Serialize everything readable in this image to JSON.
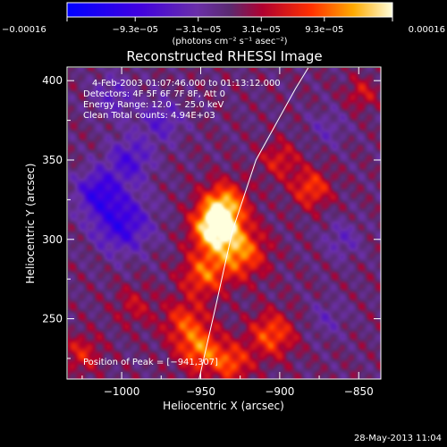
{
  "chart_data": {
    "type": "heatmap",
    "title": "Reconstructed RHESSI Image",
    "xlabel": "Heliocentric X (arcsec)",
    "ylabel": "Heliocentric Y (arcsec)",
    "xlim": [
      -1034,
      -836
    ],
    "ylim": [
      212,
      408
    ],
    "xticks": [
      -1000,
      -950,
      -900,
      -850
    ],
    "xtick_labels": [
      "−1000",
      "−950",
      "−900",
      "−850"
    ],
    "yticks": [
      250,
      300,
      350,
      400
    ],
    "ytick_labels": [
      "250",
      "300",
      "350",
      "400"
    ],
    "colorbar": {
      "range": [
        -0.00016,
        0.00016
      ],
      "tick_values": [
        -0.00016,
        -9.3e-05,
        -3.1e-05,
        3.1e-05,
        9.3e-05,
        0.00016
      ],
      "tick_labels": [
        "−0.00016",
        "−9.3e−05",
        "−3.1e−05",
        "3.1e−05",
        "9.3e−05",
        "0.00016"
      ],
      "unit_label": "(photons cm⁻² s⁻¹ asec⁻²)"
    },
    "annotations": {
      "time_range": "4‑Feb‑2003 01:07:46.000 to 01:13:12.000",
      "detectors": "Detectors: 4F 5F 6F 7F 8F, Att 0",
      "energy": "Energy Range: 12.0 − 25.0 keV",
      "method": "Clean     Total counts: 4.94E+03",
      "peak": "Position of Peak = [−941,307]"
    },
    "peak": {
      "x": -941,
      "y": 307
    },
    "limb": [
      [
        -951,
        212
      ],
      [
        -940,
        260
      ],
      [
        -930,
        305
      ],
      [
        -915,
        350
      ],
      [
        -890,
        395
      ],
      [
        -882,
        408
      ]
    ],
    "sources": [
      {
        "x": -941,
        "y": 307,
        "amp": 1.0,
        "w": 14
      },
      {
        "x": -935,
        "y": 322,
        "amp": 0.7,
        "w": 14
      },
      {
        "x": -925,
        "y": 292,
        "amp": 0.65,
        "w": 16
      },
      {
        "x": -948,
        "y": 278,
        "amp": 0.55,
        "w": 14
      },
      {
        "x": -960,
        "y": 248,
        "amp": 0.45,
        "w": 14
      },
      {
        "x": -950,
        "y": 230,
        "amp": 0.6,
        "w": 14
      },
      {
        "x": -905,
        "y": 240,
        "amp": 0.55,
        "w": 14
      },
      {
        "x": -930,
        "y": 222,
        "amp": 0.5,
        "w": 12
      },
      {
        "x": -880,
        "y": 332,
        "amp": 0.5,
        "w": 12
      },
      {
        "x": -900,
        "y": 350,
        "amp": 0.35,
        "w": 12
      },
      {
        "x": -848,
        "y": 392,
        "amp": 0.3,
        "w": 10
      },
      {
        "x": -1025,
        "y": 228,
        "amp": 0.35,
        "w": 12
      },
      {
        "x": -992,
        "y": 258,
        "amp": 0.25,
        "w": 12
      },
      {
        "x": -1000,
        "y": 310,
        "amp": -0.6,
        "w": 18
      },
      {
        "x": -1015,
        "y": 330,
        "amp": -0.55,
        "w": 14
      },
      {
        "x": -995,
        "y": 350,
        "amp": -0.45,
        "w": 14
      },
      {
        "x": -975,
        "y": 375,
        "amp": -0.35,
        "w": 14
      },
      {
        "x": -1005,
        "y": 390,
        "amp": -0.3,
        "w": 14
      },
      {
        "x": -860,
        "y": 300,
        "amp": -0.25,
        "w": 12
      },
      {
        "x": -870,
        "y": 250,
        "amp": -0.2,
        "w": 12
      },
      {
        "x": -870,
        "y": 370,
        "amp": -0.2,
        "w": 12
      }
    ]
  },
  "footer": {
    "date": "28‑May‑2013 11:04"
  }
}
